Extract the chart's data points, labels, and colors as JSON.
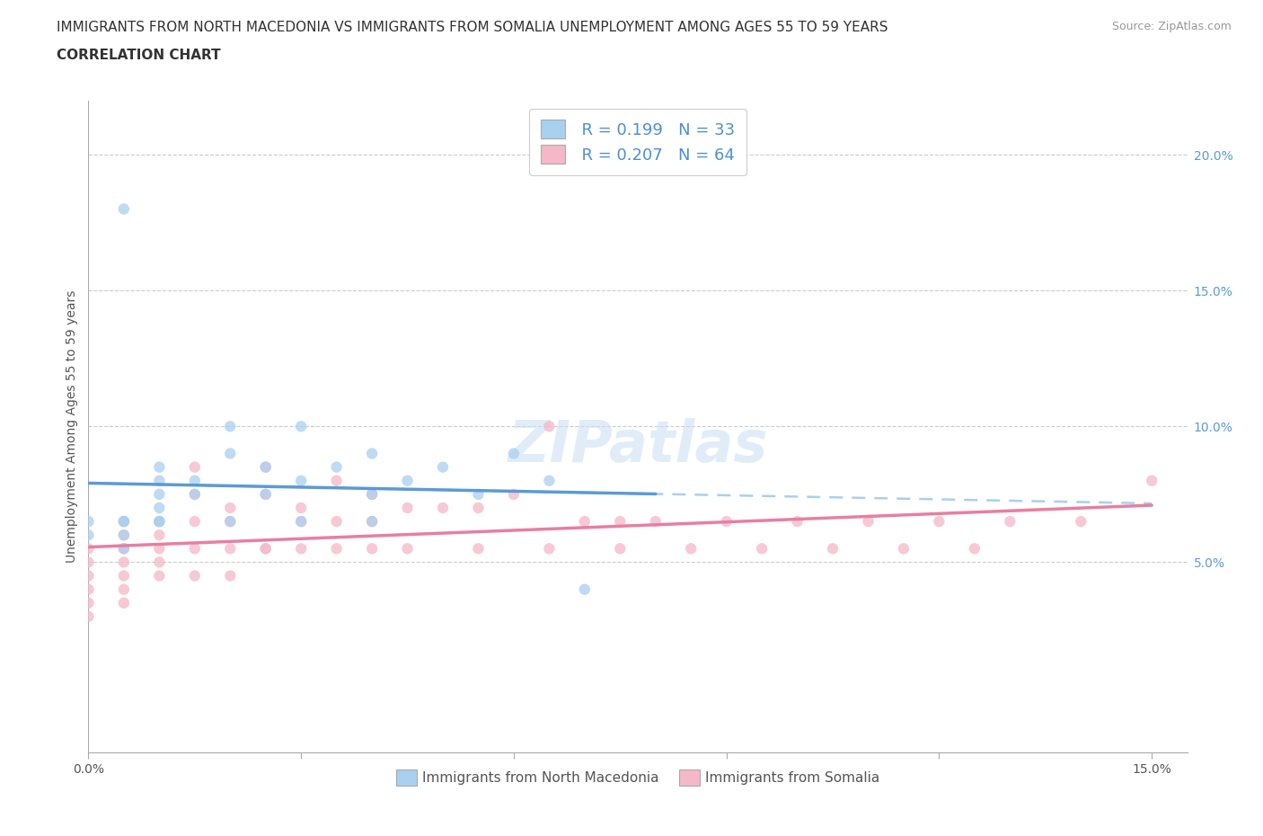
{
  "title_line1": "IMMIGRANTS FROM NORTH MACEDONIA VS IMMIGRANTS FROM SOMALIA UNEMPLOYMENT AMONG AGES 55 TO 59 YEARS",
  "title_line2": "CORRELATION CHART",
  "source_text": "Source: ZipAtlas.com",
  "ylabel": "Unemployment Among Ages 55 to 59 years",
  "xlim": [
    0.0,
    0.155
  ],
  "ylim": [
    -0.02,
    0.22
  ],
  "yticks_right": [
    0.05,
    0.1,
    0.15,
    0.2
  ],
  "ytick_right_labels": [
    "5.0%",
    "10.0%",
    "15.0%",
    "20.0%"
  ],
  "watermark": "ZIPatlas",
  "legend_r1": "R = 0.199",
  "legend_n1": "N = 33",
  "legend_r2": "R = 0.207",
  "legend_n2": "N = 64",
  "color_blue": "#a8d0f0",
  "color_pink": "#f5b8c8",
  "trend_blue_solid": "#5b9bd5",
  "trend_blue_dashed": "#a8d0f0",
  "trend_pink_solid": "#e87fa0",
  "macedonia_x": [
    0.005,
    0.0,
    0.0,
    0.005,
    0.005,
    0.01,
    0.01,
    0.01,
    0.01,
    0.005,
    0.01,
    0.015,
    0.015,
    0.02,
    0.02,
    0.025,
    0.025,
    0.03,
    0.03,
    0.035,
    0.04,
    0.04,
    0.045,
    0.05,
    0.055,
    0.06,
    0.065,
    0.07,
    0.005,
    0.01,
    0.02,
    0.03,
    0.04
  ],
  "macedonia_y": [
    0.18,
    0.065,
    0.06,
    0.065,
    0.06,
    0.085,
    0.08,
    0.075,
    0.07,
    0.055,
    0.065,
    0.08,
    0.075,
    0.1,
    0.09,
    0.085,
    0.075,
    0.1,
    0.08,
    0.085,
    0.09,
    0.075,
    0.08,
    0.085,
    0.075,
    0.09,
    0.08,
    0.04,
    0.065,
    0.065,
    0.065,
    0.065,
    0.065
  ],
  "somalia_x": [
    0.0,
    0.0,
    0.0,
    0.0,
    0.0,
    0.0,
    0.005,
    0.005,
    0.005,
    0.005,
    0.005,
    0.005,
    0.005,
    0.01,
    0.01,
    0.01,
    0.01,
    0.01,
    0.015,
    0.015,
    0.015,
    0.015,
    0.015,
    0.02,
    0.02,
    0.02,
    0.02,
    0.025,
    0.025,
    0.025,
    0.03,
    0.03,
    0.03,
    0.035,
    0.035,
    0.04,
    0.04,
    0.04,
    0.045,
    0.05,
    0.055,
    0.06,
    0.065,
    0.07,
    0.075,
    0.08,
    0.09,
    0.1,
    0.11,
    0.12,
    0.13,
    0.14,
    0.15,
    0.025,
    0.035,
    0.045,
    0.055,
    0.065,
    0.075,
    0.085,
    0.095,
    0.105,
    0.115,
    0.125
  ],
  "somalia_y": [
    0.055,
    0.05,
    0.045,
    0.04,
    0.035,
    0.03,
    0.065,
    0.06,
    0.055,
    0.05,
    0.045,
    0.04,
    0.035,
    0.065,
    0.06,
    0.055,
    0.05,
    0.045,
    0.085,
    0.075,
    0.065,
    0.055,
    0.045,
    0.07,
    0.065,
    0.055,
    0.045,
    0.085,
    0.075,
    0.055,
    0.07,
    0.065,
    0.055,
    0.08,
    0.065,
    0.075,
    0.065,
    0.055,
    0.07,
    0.07,
    0.07,
    0.075,
    0.1,
    0.065,
    0.065,
    0.065,
    0.065,
    0.065,
    0.065,
    0.065,
    0.065,
    0.065,
    0.08,
    0.055,
    0.055,
    0.055,
    0.055,
    0.055,
    0.055,
    0.055,
    0.055,
    0.055,
    0.055,
    0.055
  ],
  "title_fontsize": 11,
  "label_fontsize": 10,
  "tick_fontsize": 10,
  "legend_fontsize": 13
}
